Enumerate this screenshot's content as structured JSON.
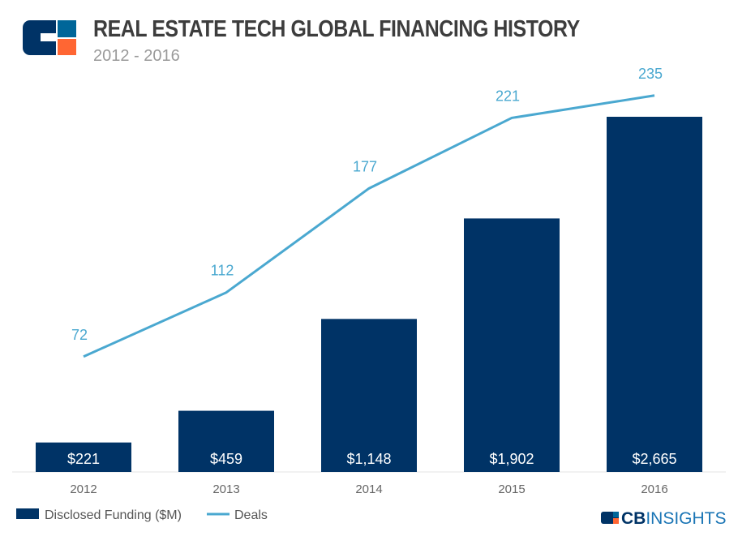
{
  "header": {
    "title": "REAL ESTATE TECH GLOBAL FINANCING HISTORY",
    "subtitle": "2012 - 2016"
  },
  "brand": {
    "logo_text_bold": "CB",
    "logo_text_light": "INSIGHTS"
  },
  "chart_data": {
    "type": "bar+line",
    "categories": [
      "2012",
      "2013",
      "2014",
      "2015",
      "2016"
    ],
    "series": [
      {
        "name": "Disclosed Funding ($M)",
        "type": "bar",
        "values": [
          221,
          459,
          1148,
          1902,
          2665
        ],
        "labels": [
          "$221",
          "$459",
          "$1,148",
          "$1,902",
          "$2,665"
        ],
        "color": "#003366"
      },
      {
        "name": "Deals",
        "type": "line",
        "values": [
          72,
          112,
          177,
          221,
          235
        ],
        "labels": [
          "72",
          "112",
          "177",
          "221",
          "235"
        ],
        "color": "#4aa8d0"
      }
    ],
    "grid": false,
    "legend": "bottom-left"
  }
}
